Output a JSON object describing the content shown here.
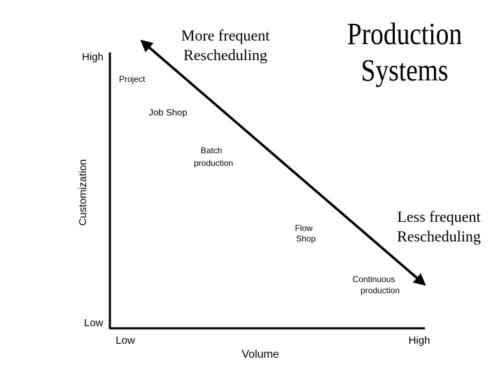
{
  "title": {
    "lines": [
      "Production",
      "Systems"
    ]
  },
  "top_note": {
    "lines": [
      "More frequent",
      "Rescheduling"
    ]
  },
  "bottom_note": {
    "lines": [
      "Less frequent",
      "Rescheduling"
    ]
  },
  "y_axis": {
    "label": "Customization",
    "high": "High",
    "low": "Low"
  },
  "x_axis": {
    "label": "Volume",
    "low": "Low",
    "high": "High"
  },
  "processes": [
    {
      "lines": [
        "Project"
      ]
    },
    {
      "lines": [
        "Job Shop"
      ]
    },
    {
      "lines": [
        "Batch",
        "production"
      ]
    },
    {
      "lines": [
        "Flow",
        "Shop"
      ]
    },
    {
      "lines": [
        "Continuous",
        "production"
      ]
    }
  ]
}
